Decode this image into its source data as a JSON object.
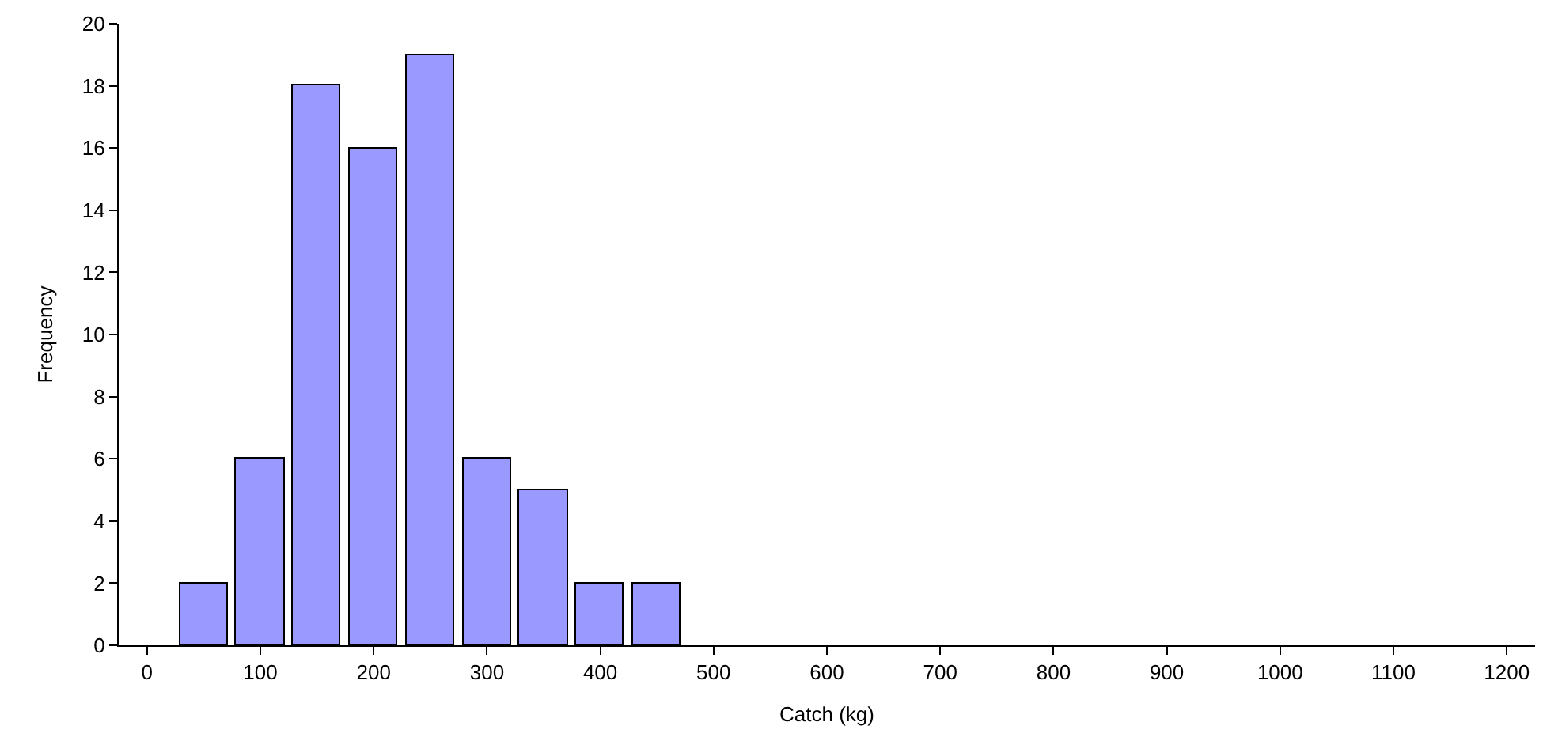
{
  "chart_data": {
    "type": "histogram",
    "xlabel": "Catch (kg)",
    "ylabel": "Frequency",
    "bins": [
      25,
      75,
      125,
      175,
      225,
      275,
      325,
      375,
      425,
      475
    ],
    "values": [
      2,
      6,
      18,
      16,
      19,
      6,
      5,
      2,
      2
    ],
    "color": "#9999ff",
    "xlim": [
      -25,
      1225
    ],
    "xticks": [
      0,
      100,
      200,
      300,
      400,
      500,
      600,
      700,
      800,
      900,
      1000,
      1100,
      1200
    ],
    "ylim": [
      0,
      20
    ],
    "yticks": [
      0,
      2,
      4,
      6,
      8,
      10,
      12,
      14,
      16,
      18,
      20
    ],
    "grid": false
  }
}
